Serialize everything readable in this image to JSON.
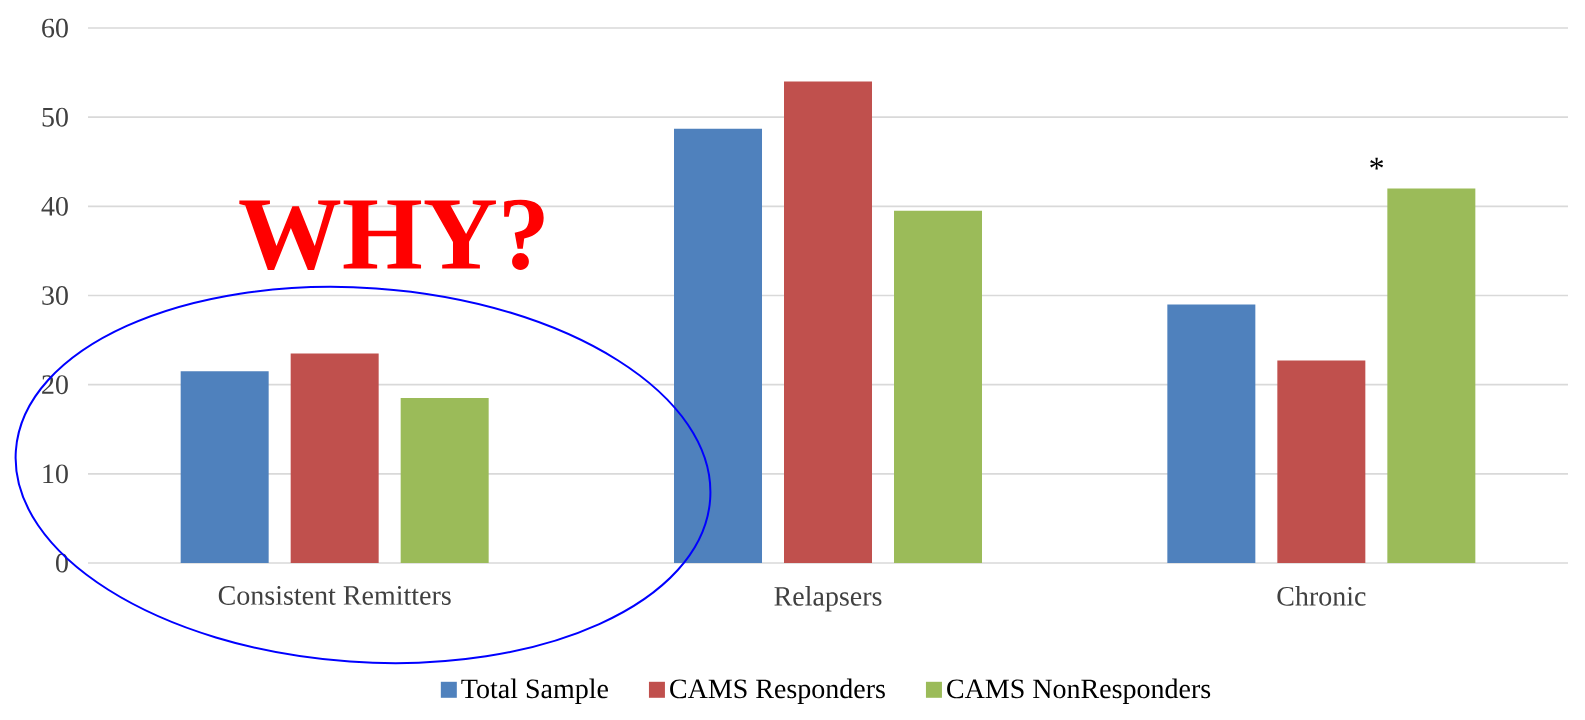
{
  "chart_data": {
    "type": "bar",
    "categories": [
      "Consistent Remitters",
      "Relapsers",
      "Chronic"
    ],
    "series": [
      {
        "name": "Total Sample",
        "color": "#4f81bd",
        "values": [
          21.5,
          48.7,
          29
        ]
      },
      {
        "name": "CAMS Responders",
        "color": "#c0504d",
        "values": [
          23.5,
          54,
          22.7
        ]
      },
      {
        "name": "CAMS NonResponders",
        "color": "#9bbb59",
        "values": [
          18.5,
          39.5,
          42
        ]
      }
    ],
    "ylim": [
      0,
      60
    ],
    "yticks": [
      0,
      10,
      20,
      30,
      40,
      50,
      60
    ],
    "grid": "y",
    "legend": "bottom",
    "annotations": [
      "WHY?",
      "*"
    ]
  }
}
